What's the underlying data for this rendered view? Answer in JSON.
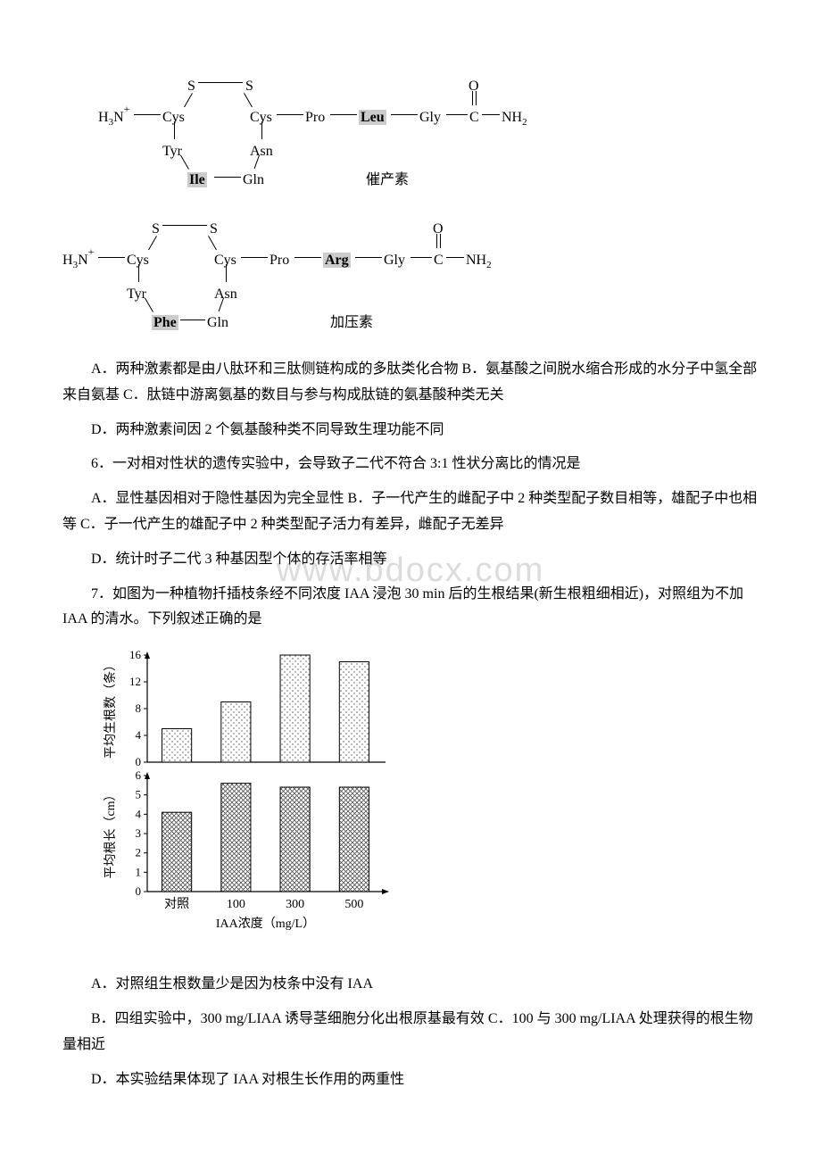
{
  "watermark": "www.bdocx.com",
  "peptide1": {
    "h3n": "H₃N",
    "cys1": "Cys",
    "s1": "S",
    "s2": "S",
    "cys2": "Cys",
    "pro": "Pro",
    "leu": "Leu",
    "gly": "Gly",
    "o": "O",
    "c": "C",
    "nh2": "NH₂",
    "tyr": "Tyr",
    "asn": "Asn",
    "ile": "Ile",
    "gln": "Gln",
    "label": "催产素"
  },
  "peptide2": {
    "h3n": "H₃N",
    "cys1": "Cys",
    "s1": "S",
    "s2": "S",
    "cys2": "Cys",
    "pro": "Pro",
    "arg": "Arg",
    "gly": "Gly",
    "o": "O",
    "c": "C",
    "nh2": "NH₂",
    "tyr": "Tyr",
    "asn": "Asn",
    "phe": "Phe",
    "gln": "Gln",
    "label": "加压素"
  },
  "q5": {
    "optA_C": "A．两种激素都是由八肽环和三肽侧链构成的多肽类化合物 B．氨基酸之间脱水缩合形成的水分子中氢全部来自氨基 C．肽链中游离氨基的数目与参与构成肽链的氨基酸种类无关",
    "optD": "D．两种激素间因 2 个氨基酸种类不同导致生理功能不同"
  },
  "q6": {
    "stem": "6．一对相对性状的遗传实验中，会导致子二代不符合 3:1 性状分离比的情况是",
    "optA_C": "A．显性基因相对于隐性基因为完全显性 B．子一代产生的雌配子中 2 种类型配子数目相等，雄配子中也相等 C．子一代产生的雄配子中 2 种类型配子活力有差异，雌配子无差异",
    "optD": "D．统计时子二代 3 种基因型个体的存活率相等"
  },
  "q7": {
    "stem": "7．如图为一种植物扦插枝条经不同浓度 IAA 浸泡 30 min 后的生根结果(新生根粗细相近)，对照组为不加 IAA 的清水。下列叙述正确的是",
    "optA": "A．对照组生根数量少是因为枝条中没有 IAA",
    "optB_C": "B．四组实验中，300 mg/LIAA 诱导茎细胞分化出根原基最有效 C．100 与 300 mg/LIAA 处理获得的根生物量相近",
    "optD": "D．本实验结果体现了 IAA 对根生长作用的两重性"
  },
  "chart": {
    "type": "bar",
    "panels": 2,
    "categories": [
      "对照",
      "100",
      "300",
      "500"
    ],
    "xlabel": "IAA浓度（mg/L）",
    "panel1": {
      "ylabel": "平均生根数（条）",
      "ylim": [
        0,
        16
      ],
      "yticks": [
        0,
        4,
        8,
        12,
        16
      ],
      "values": [
        5,
        9,
        16,
        15
      ],
      "bar_fill": "dotted",
      "bar_stroke": "#000000"
    },
    "panel2": {
      "ylabel": "平均根长（cm）",
      "ylim": [
        0,
        6
      ],
      "yticks": [
        0,
        1,
        2,
        3,
        4,
        5,
        6
      ],
      "values": [
        4.1,
        5.6,
        5.4,
        5.4
      ],
      "bar_fill": "crosshatch",
      "bar_stroke": "#000000"
    },
    "bar_width": 0.5,
    "background_color": "#ffffff",
    "axis_color": "#000000",
    "font_size": 14
  }
}
